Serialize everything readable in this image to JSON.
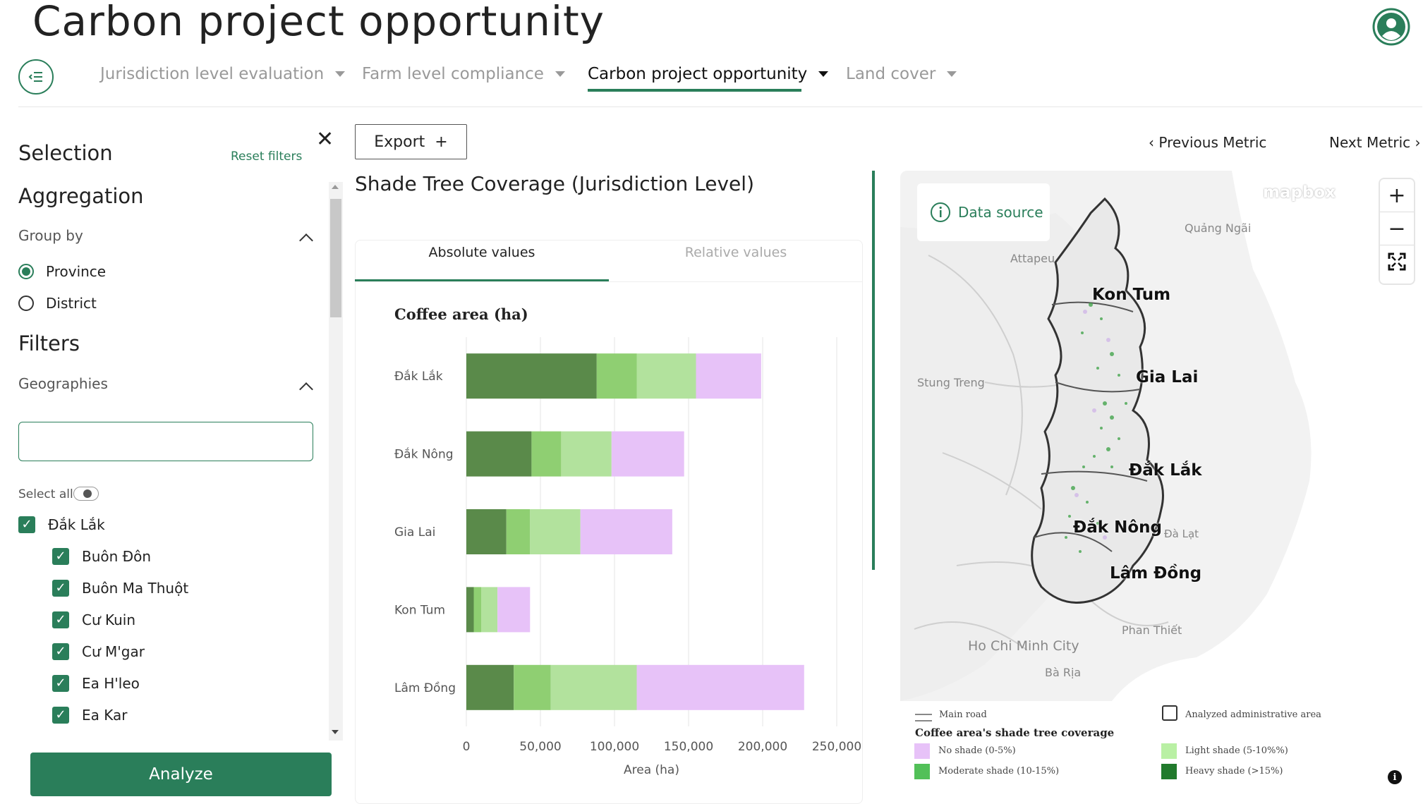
{
  "app": {
    "title": "Carbon project opportunity"
  },
  "nav": {
    "tabs": [
      {
        "label": "Jurisdiction level evaluation",
        "active": false
      },
      {
        "label": "Farm level compliance",
        "active": false
      },
      {
        "label": "Carbon project opportunity",
        "active": true
      },
      {
        "label": "Land cover",
        "active": false
      }
    ]
  },
  "sidebar": {
    "selection_label": "Selection",
    "reset_label": "Reset filters",
    "aggregation_label": "Aggregation",
    "group_by_label": "Group by",
    "group_by_options": [
      {
        "label": "Province",
        "selected": true
      },
      {
        "label": "District",
        "selected": false
      }
    ],
    "filters_label": "Filters",
    "geographies_label": "Geographies",
    "search_value": "",
    "select_all_label": "Select all",
    "province": {
      "label": "Đắk Lắk",
      "checked": true
    },
    "districts": [
      {
        "label": "Buôn Đôn",
        "checked": true
      },
      {
        "label": "Buôn Ma Thuột",
        "checked": true
      },
      {
        "label": "Cư Kuin",
        "checked": true
      },
      {
        "label": "Cư M'gar",
        "checked": true
      },
      {
        "label": "Ea H'leo",
        "checked": true
      },
      {
        "label": "Ea Kar",
        "checked": true
      }
    ],
    "analyze_label": "Analyze"
  },
  "toolbar": {
    "export_label": "Export",
    "prev_metric_label": "Previous Metric",
    "next_metric_label": "Next Metric"
  },
  "main": {
    "chart_title": "Shade Tree Coverage (Jurisdiction Level)",
    "tab_absolute": "Absolute values",
    "tab_relative": "Relative values"
  },
  "chart_data": {
    "type": "bar",
    "orientation": "horizontal",
    "stacked": true,
    "title": "Coffee area (ha)",
    "xlabel": "Area (ha)",
    "ylabel": "",
    "xlim": [
      0,
      250000
    ],
    "xticks": [
      "0",
      "50,000",
      "100,000",
      "150,000",
      "200,000",
      "250,000"
    ],
    "categories": [
      "Đắk Lắk",
      "Đắk Nông",
      "Gia Lai",
      "Kon Tum",
      "Lâm Đồng"
    ],
    "series": [
      {
        "key": "heavy",
        "color": "#5a8a4a",
        "values": [
          88000,
          44000,
          27000,
          5000,
          32000
        ]
      },
      {
        "key": "moderate",
        "color": "#8fcf72",
        "values": [
          27000,
          20000,
          16000,
          5000,
          25000
        ]
      },
      {
        "key": "light",
        "color": "#b2e29d",
        "values": [
          40000,
          34000,
          34000,
          11000,
          58000
        ]
      },
      {
        "key": "none",
        "color": "#e7c2f8",
        "values": [
          44000,
          49000,
          62000,
          22000,
          113000
        ]
      }
    ],
    "grid": true
  },
  "map": {
    "data_source_label": "Data source",
    "attribution": "mapbox",
    "labels": {
      "kon_tum": "Kon Tum",
      "gia_lai": "Gia Lai",
      "dak_lak": "Đắk Lắk",
      "dak_nong": "Đắk Nông",
      "lam_dong": "Lâm Đồng",
      "quang_ngai": "Quảng Ngãi",
      "attapeu": "Attapeu",
      "stung_treng": "Stung Treng",
      "da_lat": "Đà Lạt",
      "phan_thiet": "Phan Thiết",
      "hcmc": "Ho Chi Minh City",
      "ba_ria": "Bà Rịa"
    },
    "zoom_in": "+",
    "zoom_out": "−"
  },
  "legend": {
    "main_road": "Main road",
    "analyzed_area": "Analyzed administrative area",
    "title": "Coffee area's shade tree coverage",
    "items": [
      {
        "label": "No shade (0-5%)",
        "color": "#e7c2f8"
      },
      {
        "label": "Light shade (5-10%%)",
        "color": "#b9f0a4"
      },
      {
        "label": "Moderate shade (10-15%)",
        "color": "#52c058"
      },
      {
        "label": "Heavy shade (>15%)",
        "color": "#217a2c"
      }
    ]
  }
}
